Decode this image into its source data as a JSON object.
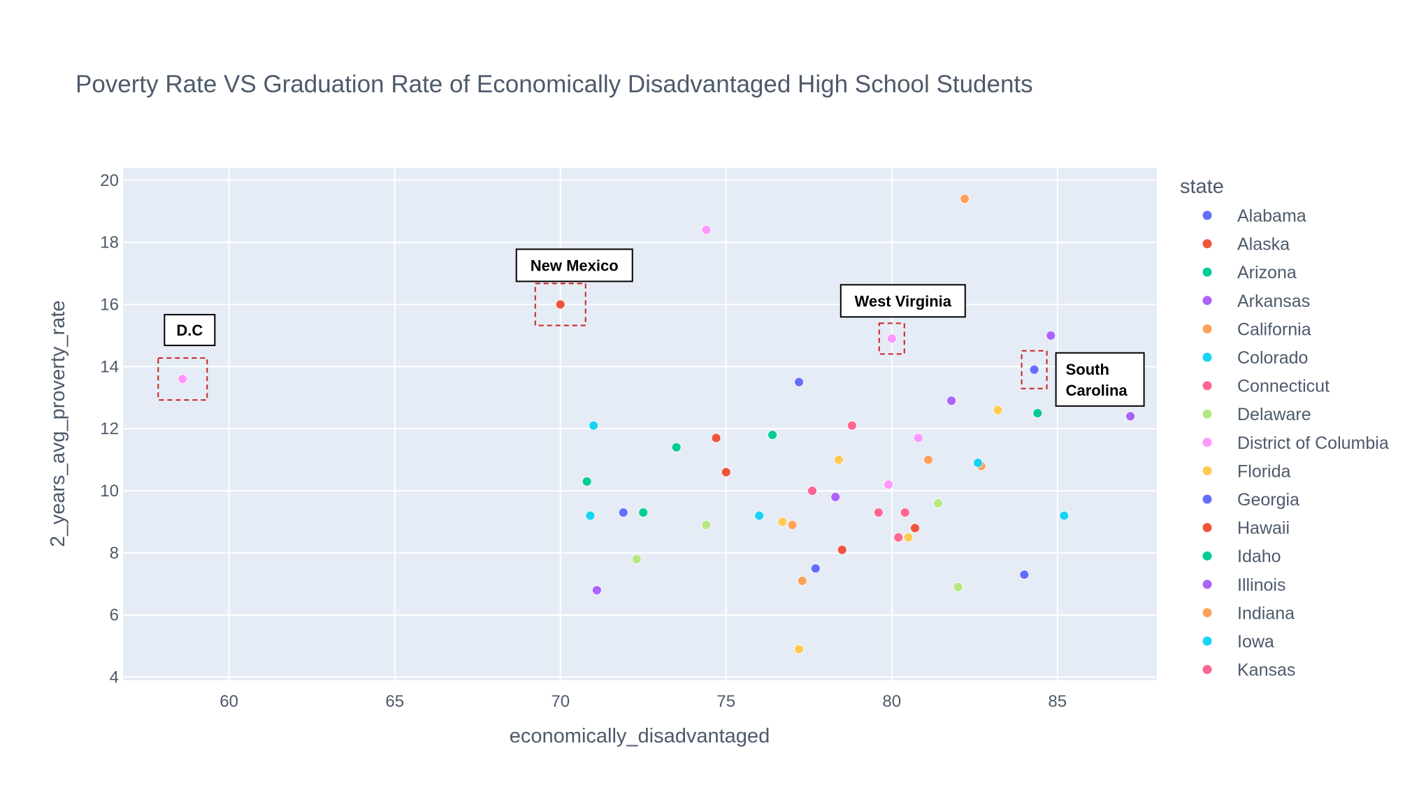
{
  "chart_data": {
    "type": "scatter",
    "title": "Poverty Rate VS Graduation Rate of Economically Disadvantaged High School Students",
    "xlabel": "economically_disadvantaged",
    "ylabel": "2_years_avg_proverty_rate",
    "xlim": [
      56.8,
      88.0
    ],
    "ylim": [
      3.9,
      20.4
    ],
    "x_ticks": [
      60,
      65,
      70,
      75,
      80,
      85
    ],
    "y_ticks": [
      4,
      6,
      8,
      10,
      12,
      14,
      16,
      18,
      20
    ],
    "grid": true,
    "legend_title": "state",
    "legend_position": "right",
    "series": [
      {
        "name": "Alabama",
        "color": "#636efa",
        "points": [
          [
            77.2,
            13.5
          ],
          [
            71.9,
            9.3
          ],
          [
            77.7,
            7.5
          ],
          [
            84.3,
            13.9
          ],
          [
            84.0,
            7.3
          ]
        ]
      },
      {
        "name": "Alaska",
        "color": "#ef553b",
        "points": [
          [
            74.7,
            11.7
          ],
          [
            75.0,
            10.6
          ],
          [
            78.5,
            8.1
          ],
          [
            80.7,
            8.8
          ],
          [
            70.0,
            16.0
          ]
        ]
      },
      {
        "name": "Arizona",
        "color": "#00cc96",
        "points": [
          [
            73.5,
            11.4
          ],
          [
            72.5,
            9.3
          ],
          [
            76.4,
            11.8
          ],
          [
            70.8,
            10.3
          ],
          [
            84.4,
            12.5
          ]
        ]
      },
      {
        "name": "Arkansas",
        "color": "#ab63fa",
        "points": [
          [
            81.8,
            12.9
          ],
          [
            78.3,
            9.8
          ],
          [
            71.1,
            6.8
          ],
          [
            84.8,
            15.0
          ],
          [
            87.2,
            12.4
          ]
        ]
      },
      {
        "name": "California",
        "color": "#ffa15a",
        "points": [
          [
            82.2,
            19.4
          ],
          [
            81.1,
            11.0
          ],
          [
            82.7,
            10.8
          ],
          [
            77.0,
            8.9
          ],
          [
            77.3,
            7.1
          ]
        ]
      },
      {
        "name": "Colorado",
        "color": "#19d3f3",
        "points": [
          [
            71.0,
            12.1
          ],
          [
            70.9,
            9.2
          ],
          [
            76.0,
            9.2
          ],
          [
            82.6,
            10.9
          ],
          [
            85.2,
            9.2
          ]
        ]
      },
      {
        "name": "Connecticut",
        "color": "#ff6692",
        "points": [
          [
            78.8,
            12.1
          ],
          [
            77.6,
            10.0
          ],
          [
            79.6,
            9.3
          ],
          [
            80.4,
            9.3
          ],
          [
            80.2,
            8.5
          ]
        ]
      },
      {
        "name": "Delaware",
        "color": "#b6e880",
        "points": [
          [
            74.4,
            8.9
          ],
          [
            72.3,
            7.8
          ],
          [
            81.4,
            9.6
          ],
          [
            82.0,
            6.9
          ]
        ]
      },
      {
        "name": "District of Columbia",
        "color": "#ff97ff",
        "points": [
          [
            74.4,
            18.4
          ],
          [
            80.0,
            14.9
          ],
          [
            80.8,
            11.7
          ],
          [
            79.9,
            10.2
          ],
          [
            58.6,
            13.6
          ]
        ]
      },
      {
        "name": "Florida",
        "color": "#fecb52",
        "points": [
          [
            78.4,
            11.0
          ],
          [
            83.2,
            12.6
          ],
          [
            76.7,
            9.0
          ],
          [
            80.5,
            8.5
          ],
          [
            77.2,
            4.9
          ]
        ]
      },
      {
        "name": "Georgia",
        "color": "#636efa",
        "points": []
      },
      {
        "name": "Hawaii",
        "color": "#ef553b",
        "points": []
      },
      {
        "name": "Idaho",
        "color": "#00cc96",
        "points": []
      },
      {
        "name": "Illinois",
        "color": "#ab63fa",
        "points": []
      },
      {
        "name": "Indiana",
        "color": "#ffa15a",
        "points": []
      },
      {
        "name": "Iowa",
        "color": "#19d3f3",
        "points": []
      },
      {
        "name": "Kansas",
        "color": "#ff6692",
        "points": []
      }
    ],
    "annotations": [
      {
        "text": "D.C",
        "x": 58.6,
        "y": 13.6
      },
      {
        "text": "New Mexico",
        "x": 70.0,
        "y": 16.0
      },
      {
        "text": "West Virginia",
        "x": 80.0,
        "y": 14.9
      },
      {
        "text": "South Carolina",
        "x": 84.3,
        "y": 13.9
      }
    ]
  }
}
